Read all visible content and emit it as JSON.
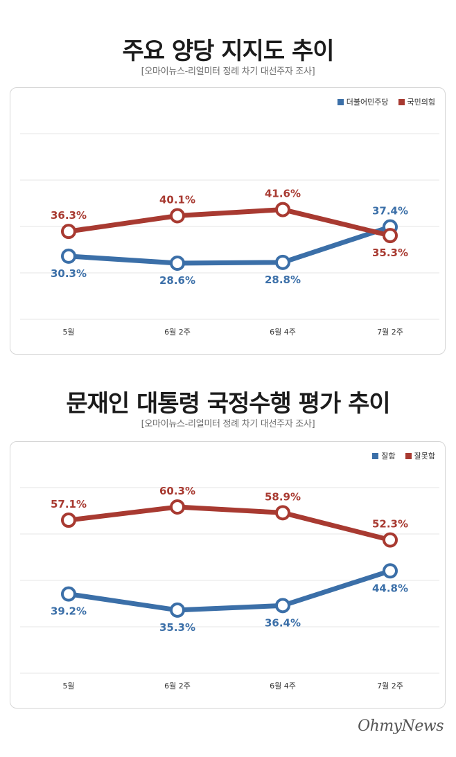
{
  "colors": {
    "blue": "#3b6fa8",
    "red": "#a83a31",
    "grid": "#e4e4e4",
    "label": "#333333"
  },
  "chart1": {
    "title_bold": "주요 양당 지지도",
    "title_rest": " 추이",
    "subtitle": "[오마이뉴스-리얼미터 정례 차기 대선주자 조사]"
  },
  "chart2": {
    "title_rest": "문재인 ",
    "title_bold": "대통령 국정수행 평가",
    "title_end": " 추이",
    "subtitle": "[오마이뉴스-리얼미터 정례 차기 대선주자 조사]"
  },
  "chart_data": [
    {
      "type": "line",
      "categories": [
        "5월",
        "6월 2주",
        "6월 4주",
        "7월 2주"
      ],
      "series": [
        {
          "name": "더불어민주당",
          "color": "#3b6fa8",
          "values": [
            30.3,
            28.6,
            28.8,
            37.4
          ],
          "labels": [
            "30.3%",
            "28.6%",
            "28.8%",
            "37.4%"
          ]
        },
        {
          "name": "국민의힘",
          "color": "#a83a31",
          "values": [
            36.3,
            40.1,
            41.6,
            35.3
          ],
          "labels": [
            "36.3%",
            "40.1%",
            "41.6%",
            "35.3%"
          ]
        }
      ],
      "ylim": [
        15,
        60
      ],
      "grid": true,
      "legend": "top-right"
    },
    {
      "type": "line",
      "categories": [
        "5월",
        "6월 2주",
        "6월 4주",
        "7월 2주"
      ],
      "series": [
        {
          "name": "잘함",
          "color": "#3b6fa8",
          "values": [
            39.2,
            35.3,
            36.4,
            44.8
          ],
          "labels": [
            "39.2%",
            "35.3%",
            "36.4%",
            "44.8%"
          ]
        },
        {
          "name": "잘못함",
          "color": "#a83a31",
          "values": [
            57.1,
            60.3,
            58.9,
            52.3
          ],
          "labels": [
            "57.1%",
            "60.3%",
            "58.9%",
            "52.3%"
          ]
        }
      ],
      "ylim": [
        20,
        65
      ],
      "grid": true,
      "legend": "top-right"
    }
  ],
  "logo": "OhmyNews"
}
